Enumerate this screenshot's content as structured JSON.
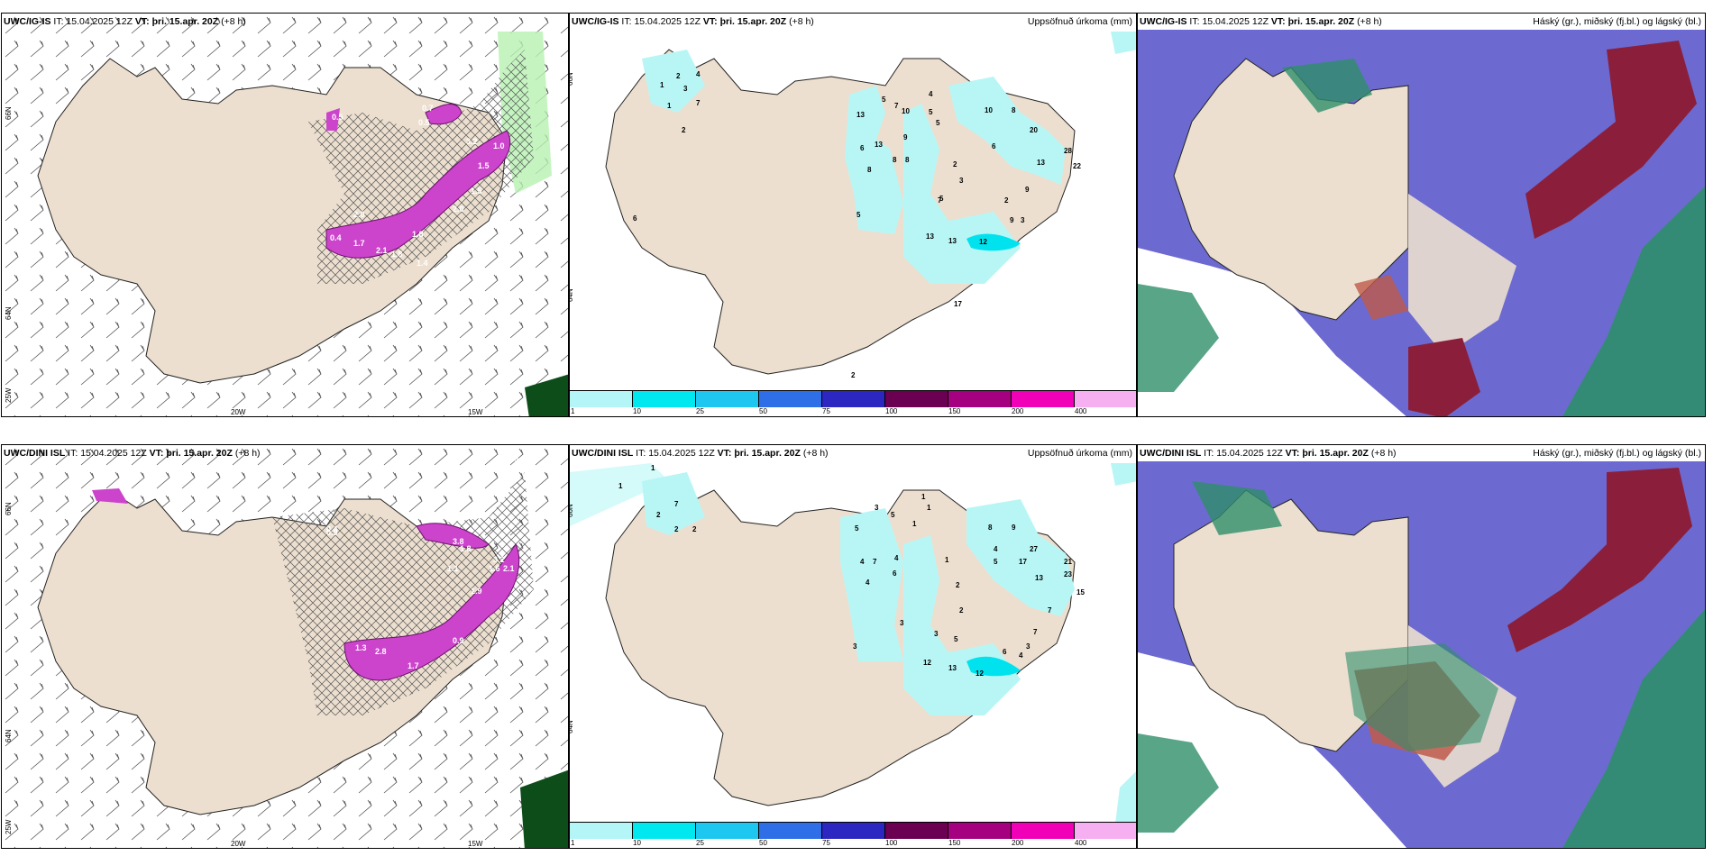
{
  "rows": [
    {
      "model": "UWC/IG-IS",
      "it_label": "IT:",
      "it_value": "15.04.2025 12Z",
      "vt_label": "VT:",
      "vt_value": "þri. 15.apr. 20Z",
      "lead": "(+8 h)",
      "precip_values": [
        "1",
        "2",
        "3",
        "4",
        "7",
        "1",
        "2",
        "6",
        "13",
        "6",
        "13",
        "8",
        "8",
        "8",
        "9",
        "5",
        "7",
        "10",
        "4",
        "5",
        "5",
        "10",
        "8",
        "20",
        "6",
        "13",
        "28",
        "22",
        "2",
        "3",
        "5",
        "7",
        "2",
        "9",
        "9",
        "3",
        "13",
        "13",
        "12",
        "17",
        "5",
        "2"
      ],
      "wind_values": [
        "0.7",
        "0.5",
        "1.5",
        "3.2",
        "1.0",
        "1.5",
        "2.0",
        "1.8",
        "2.0",
        "0.5",
        "0.4",
        "1.7",
        "2.1",
        "1.8",
        "1.4"
      ]
    },
    {
      "model": "UWC/DINI ISL",
      "it_label": "IT:",
      "it_value": "15.04.2025 12Z",
      "vt_label": "VT:",
      "vt_value": "þri. 15.apr. 20Z",
      "lead": "(+8 h)",
      "precip_values": [
        "1",
        "1",
        "2",
        "2",
        "7",
        "2",
        "5",
        "3",
        "5",
        "4",
        "7",
        "4",
        "4",
        "6",
        "3",
        "1",
        "1",
        "1",
        "1",
        "2",
        "8",
        "9",
        "4",
        "5",
        "27",
        "17",
        "13",
        "21",
        "23",
        "15",
        "7",
        "7",
        "2",
        "3",
        "5",
        "6",
        "4",
        "3",
        "12",
        "13",
        "12",
        "3"
      ],
      "wind_values": [
        "0.4",
        "1.5",
        "1.8",
        "0.9",
        "1.6",
        "3.8",
        "3.2",
        "2.1",
        "1.1",
        "1.9",
        "1.3",
        "2.8",
        "1.7",
        "0.9",
        "0.4"
      ]
    }
  ],
  "precip_title": "Uppsöfnuð úrkoma (mm)",
  "cloud_title": "Háský (gr.), miðský (fj.bl.) og lágský (bl.)",
  "lat_labels": [
    "66N",
    "64N",
    "25W"
  ],
  "lon_labels": [
    "20W",
    "15W"
  ],
  "colorbar": {
    "labels": [
      "1",
      "10",
      "25",
      "50",
      "75",
      "100",
      "150",
      "200",
      "400"
    ],
    "colors": [
      "#b4f5f7",
      "#00e8ef",
      "#1ec7ef",
      "#2e6ee6",
      "#2c27c0",
      "#6b0052",
      "#a5007f",
      "#f000b6",
      "#f6b0f2"
    ]
  },
  "colors": {
    "land": "#ecdfcf",
    "sea": "#ffffff",
    "precip_light": "#b8f6f6",
    "precip_mid": "#00e3ee",
    "wind_magenta": "#cc44cc",
    "hatch": "#555555",
    "cloud_high": "#5250c8",
    "cloud_mid": "#2f8f6a",
    "cloud_low": "#8b1f3b"
  }
}
